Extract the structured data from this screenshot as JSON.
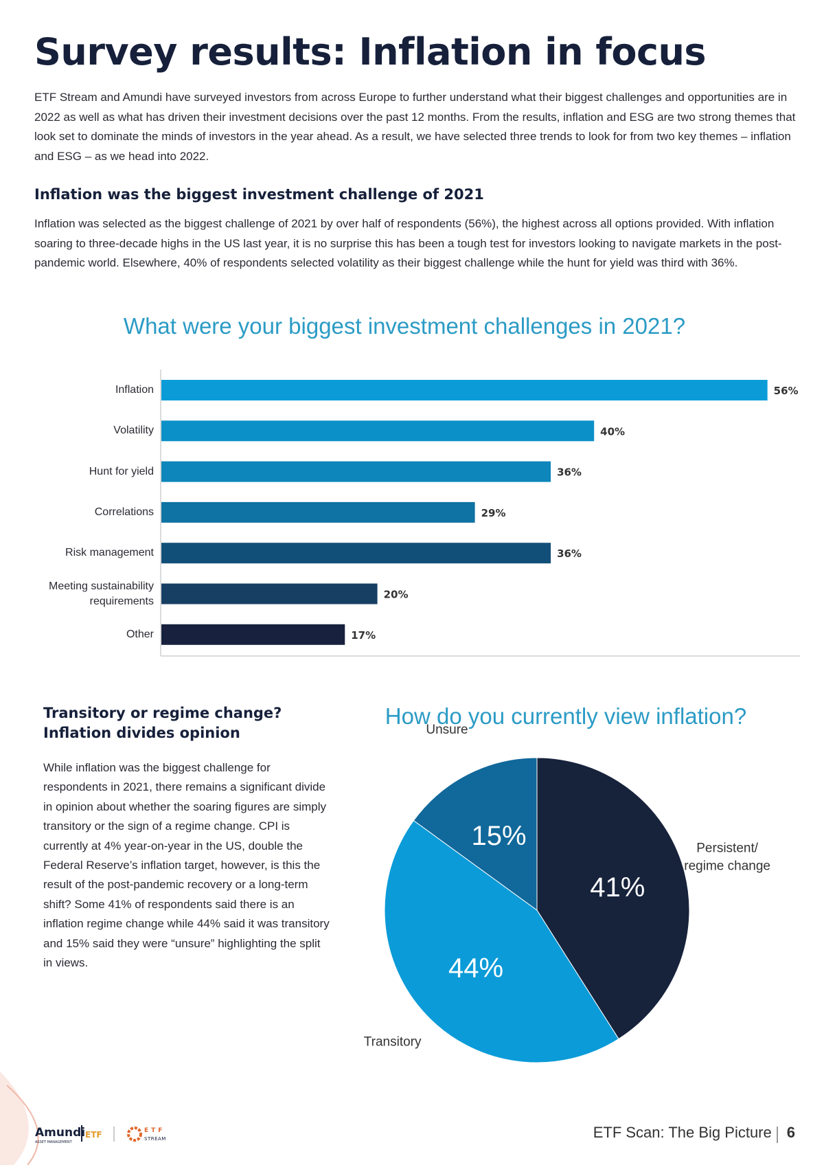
{
  "title": "Survey results: Inflation in focus",
  "intro": "ETF Stream and Amundi have surveyed investors from across Europe to further understand what their biggest challenges and opportunities are in 2022 as well as what has driven their investment decisions over the past 12 months. From the results, inflation and ESG are two strong themes that look set to dominate the minds of investors in the year ahead. As a result, we have selected three trends to look for from two key themes – inflation and ESG – as we head into 2022.",
  "section1": {
    "heading": "Inflation was the biggest investment challenge of 2021",
    "body": "Inflation was selected as the biggest challenge of 2021 by over half of respondents (56%), the highest across all options provided. With inflation soaring to three-decade highs in the US last year, it is no surprise this has been a tough test for investors looking to navigate markets in the post-pandemic world. Elsewhere, 40% of respondents selected volatility as their biggest challenge while the hunt for yield was third with 36%."
  },
  "section2": {
    "heading": "Transitory or regime change? Inflation divides opinion",
    "body": "While inflation was the biggest challenge for respondents in 2021, there remains a significant divide in opinion about whether the soaring figures are simply transitory or the sign of a regime change. CPI is currently at 4% year-on-year in the US, double the Federal Reserve’s inflation target, however, is this the result of the post-pandemic recovery or a long-term shift? Some 41% of respondents said there is an inflation regime change while 44% said it was transitory and 15% said they were “unsure” highlighting the split in views."
  },
  "chart_data": [
    {
      "type": "bar",
      "title": "What were your biggest investment challenges in 2021?",
      "categories": [
        "Inflation",
        "Volatility",
        "Hunt for yield",
        "Correlations",
        "Risk management",
        "Meeting sustainability requirements",
        "Other"
      ],
      "values": [
        56,
        40,
        36,
        29,
        36,
        20,
        17
      ],
      "value_labels": [
        "56%",
        "40%",
        "36%",
        "29%",
        "36%",
        "20%",
        "17%"
      ],
      "colors": [
        "#0b9cd8",
        "#0c90c8",
        "#0d86bb",
        "#0f73a3",
        "#124f78",
        "#173f63",
        "#18213d"
      ],
      "xlim": [
        0,
        59
      ]
    },
    {
      "type": "pie",
      "title": "How do you currently view inflation?",
      "categories": [
        "Persistent/ regime change",
        "Transitory",
        "Unsure"
      ],
      "values": [
        41,
        44,
        15
      ],
      "value_labels": [
        "41%",
        "44%",
        "15%"
      ],
      "colors": [
        "#17223b",
        "#0b9bd8",
        "#11689a"
      ]
    }
  ],
  "footer": {
    "text": "ETF Scan: The Big Picture",
    "page": "6",
    "logos": [
      "Amundi",
      "ASSET MANAGEMENT",
      "ETF",
      "ETF",
      "STREAM"
    ]
  }
}
